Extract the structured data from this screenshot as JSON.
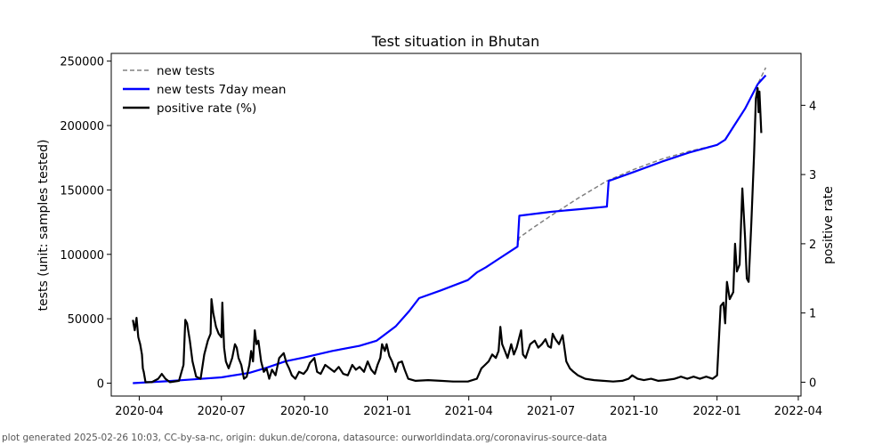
{
  "chart_data": {
    "type": "line",
    "title": "Test situation in Bhutan",
    "ylabel_left": "tests (unit: samples tested)",
    "ylabel_right": "positive rate",
    "ylim_left": [
      -10000,
      256000
    ],
    "ylim_right": [
      -0.2,
      4.75
    ],
    "xlim": [
      "2020-03-01",
      "2022-04-04"
    ],
    "y_ticks_left": [
      0,
      50000,
      100000,
      150000,
      200000,
      250000
    ],
    "y_ticks_right": [
      0,
      1,
      2,
      3,
      4
    ],
    "x_ticks": [
      "2020-04",
      "2020-07",
      "2020-10",
      "2021-01",
      "2021-04",
      "2021-07",
      "2021-10",
      "2022-01",
      "2022-04"
    ],
    "legend_placement": "top-left",
    "grid": false,
    "series": [
      {
        "name": "new tests",
        "axis": "left",
        "color": "#808080",
        "style": "dashed",
        "points": [
          [
            "2020-03-25",
            0
          ],
          [
            "2020-05-01",
            1500
          ],
          [
            "2020-06-01",
            3000
          ],
          [
            "2020-07-01",
            4500
          ],
          [
            "2020-08-01",
            8000
          ],
          [
            "2020-08-20",
            12000
          ],
          [
            "2020-09-10",
            17000
          ],
          [
            "2020-10-01",
            20000
          ],
          [
            "2020-11-01",
            25000
          ],
          [
            "2020-12-01",
            29000
          ],
          [
            "2020-12-20",
            33000
          ],
          [
            "2021-01-10",
            44000
          ],
          [
            "2021-01-25",
            56000
          ],
          [
            "2021-02-05",
            66000
          ],
          [
            "2021-03-01",
            72000
          ],
          [
            "2021-03-31",
            80000
          ],
          [
            "2021-04-10",
            86000
          ],
          [
            "2021-04-20",
            90000
          ],
          [
            "2021-05-01",
            95000
          ],
          [
            "2021-05-25",
            106000
          ],
          [
            "2021-05-27",
            113000
          ],
          [
            "2021-06-10",
            120000
          ],
          [
            "2021-07-01",
            130000
          ],
          [
            "2021-08-01",
            144000
          ],
          [
            "2021-09-01",
            157000
          ],
          [
            "2021-10-01",
            166000
          ],
          [
            "2021-11-01",
            174000
          ],
          [
            "2021-12-01",
            180000
          ],
          [
            "2022-01-01",
            185000
          ],
          [
            "2022-01-10",
            189000
          ],
          [
            "2022-01-20",
            200000
          ],
          [
            "2022-02-01",
            213000
          ],
          [
            "2022-02-15",
            232000
          ],
          [
            "2022-02-24",
            245000
          ]
        ]
      },
      {
        "name": "new tests 7day mean",
        "axis": "left",
        "color": "#0000ff",
        "style": "solid",
        "points": [
          [
            "2020-03-25",
            0
          ],
          [
            "2020-05-01",
            1500
          ],
          [
            "2020-06-01",
            3000
          ],
          [
            "2020-07-01",
            4500
          ],
          [
            "2020-08-01",
            8000
          ],
          [
            "2020-08-20",
            12000
          ],
          [
            "2020-09-10",
            17000
          ],
          [
            "2020-10-01",
            20000
          ],
          [
            "2020-11-01",
            25000
          ],
          [
            "2020-12-01",
            29000
          ],
          [
            "2020-12-20",
            33000
          ],
          [
            "2021-01-10",
            44000
          ],
          [
            "2021-01-25",
            56000
          ],
          [
            "2021-02-05",
            66000
          ],
          [
            "2021-03-01",
            72000
          ],
          [
            "2021-03-31",
            80000
          ],
          [
            "2021-04-10",
            86000
          ],
          [
            "2021-04-20",
            90000
          ],
          [
            "2021-05-01",
            95000
          ],
          [
            "2021-05-25",
            106000
          ],
          [
            "2021-05-27",
            130000
          ],
          [
            "2021-07-01",
            133000
          ],
          [
            "2021-08-01",
            135000
          ],
          [
            "2021-09-01",
            137000
          ],
          [
            "2021-09-03",
            157000
          ],
          [
            "2021-10-01",
            164000
          ],
          [
            "2021-11-01",
            172000
          ],
          [
            "2021-12-01",
            179000
          ],
          [
            "2022-01-01",
            185000
          ],
          [
            "2022-01-10",
            189000
          ],
          [
            "2022-01-20",
            200000
          ],
          [
            "2022-02-01",
            213000
          ],
          [
            "2022-02-15",
            232000
          ],
          [
            "2022-02-24",
            239000
          ]
        ]
      },
      {
        "name": "positive rate (%)",
        "axis": "right",
        "color": "#000000",
        "style": "solid",
        "points": [
          [
            "2020-03-25",
            0.9
          ],
          [
            "2020-03-27",
            0.75
          ],
          [
            "2020-03-29",
            0.93
          ],
          [
            "2020-03-31",
            0.65
          ],
          [
            "2020-04-02",
            0.55
          ],
          [
            "2020-04-04",
            0.4
          ],
          [
            "2020-04-05",
            0.2
          ],
          [
            "2020-04-06",
            0.15
          ],
          [
            "2020-04-08",
            0.0
          ],
          [
            "2020-04-15",
            0.0
          ],
          [
            "2020-04-22",
            0.05
          ],
          [
            "2020-04-26",
            0.12
          ],
          [
            "2020-04-30",
            0.05
          ],
          [
            "2020-05-05",
            0.0
          ],
          [
            "2020-05-15",
            0.02
          ],
          [
            "2020-05-20",
            0.25
          ],
          [
            "2020-05-22",
            0.9
          ],
          [
            "2020-05-24",
            0.85
          ],
          [
            "2020-05-27",
            0.6
          ],
          [
            "2020-05-30",
            0.3
          ],
          [
            "2020-06-03",
            0.08
          ],
          [
            "2020-06-08",
            0.05
          ],
          [
            "2020-06-12",
            0.4
          ],
          [
            "2020-06-16",
            0.6
          ],
          [
            "2020-06-19",
            0.7
          ],
          [
            "2020-06-20",
            1.2
          ],
          [
            "2020-06-22",
            1.0
          ],
          [
            "2020-06-25",
            0.8
          ],
          [
            "2020-06-28",
            0.7
          ],
          [
            "2020-07-01",
            0.65
          ],
          [
            "2020-07-02",
            1.15
          ],
          [
            "2020-07-04",
            0.5
          ],
          [
            "2020-07-06",
            0.3
          ],
          [
            "2020-07-09",
            0.2
          ],
          [
            "2020-07-13",
            0.35
          ],
          [
            "2020-07-16",
            0.55
          ],
          [
            "2020-07-18",
            0.5
          ],
          [
            "2020-07-20",
            0.35
          ],
          [
            "2020-07-23",
            0.25
          ],
          [
            "2020-07-26",
            0.05
          ],
          [
            "2020-07-29",
            0.08
          ],
          [
            "2020-08-01",
            0.25
          ],
          [
            "2020-08-03",
            0.45
          ],
          [
            "2020-08-05",
            0.3
          ],
          [
            "2020-08-07",
            0.75
          ],
          [
            "2020-08-09",
            0.55
          ],
          [
            "2020-08-11",
            0.6
          ],
          [
            "2020-08-14",
            0.3
          ],
          [
            "2020-08-17",
            0.15
          ],
          [
            "2020-08-20",
            0.2
          ],
          [
            "2020-08-23",
            0.05
          ],
          [
            "2020-08-26",
            0.18
          ],
          [
            "2020-08-30",
            0.1
          ],
          [
            "2020-09-03",
            0.35
          ],
          [
            "2020-09-08",
            0.42
          ],
          [
            "2020-09-11",
            0.28
          ],
          [
            "2020-09-14",
            0.2
          ],
          [
            "2020-09-17",
            0.1
          ],
          [
            "2020-09-21",
            0.05
          ],
          [
            "2020-09-25",
            0.15
          ],
          [
            "2020-09-30",
            0.12
          ],
          [
            "2020-10-04",
            0.18
          ],
          [
            "2020-10-07",
            0.28
          ],
          [
            "2020-10-12",
            0.35
          ],
          [
            "2020-10-15",
            0.15
          ],
          [
            "2020-10-19",
            0.12
          ],
          [
            "2020-10-24",
            0.25
          ],
          [
            "2020-10-29",
            0.2
          ],
          [
            "2020-11-03",
            0.15
          ],
          [
            "2020-11-08",
            0.22
          ],
          [
            "2020-11-13",
            0.12
          ],
          [
            "2020-11-18",
            0.1
          ],
          [
            "2020-11-23",
            0.25
          ],
          [
            "2020-11-27",
            0.18
          ],
          [
            "2020-12-01",
            0.22
          ],
          [
            "2020-12-06",
            0.15
          ],
          [
            "2020-12-10",
            0.3
          ],
          [
            "2020-12-14",
            0.18
          ],
          [
            "2020-12-18",
            0.12
          ],
          [
            "2020-12-21",
            0.25
          ],
          [
            "2020-12-24",
            0.35
          ],
          [
            "2020-12-26",
            0.55
          ],
          [
            "2020-12-29",
            0.45
          ],
          [
            "2020-12-31",
            0.55
          ],
          [
            "2021-01-03",
            0.38
          ],
          [
            "2021-01-06",
            0.3
          ],
          [
            "2021-01-10",
            0.15
          ],
          [
            "2021-01-13",
            0.28
          ],
          [
            "2021-01-17",
            0.3
          ],
          [
            "2021-01-20",
            0.18
          ],
          [
            "2021-01-24",
            0.05
          ],
          [
            "2021-02-01",
            0.02
          ],
          [
            "2021-02-15",
            0.03
          ],
          [
            "2021-03-01",
            0.02
          ],
          [
            "2021-03-15",
            0.01
          ],
          [
            "2021-03-31",
            0.01
          ],
          [
            "2021-04-10",
            0.05
          ],
          [
            "2021-04-15",
            0.2
          ],
          [
            "2021-04-19",
            0.25
          ],
          [
            "2021-04-23",
            0.3
          ],
          [
            "2021-04-27",
            0.4
          ],
          [
            "2021-05-01",
            0.35
          ],
          [
            "2021-05-04",
            0.45
          ],
          [
            "2021-05-06",
            0.8
          ],
          [
            "2021-05-08",
            0.55
          ],
          [
            "2021-05-11",
            0.45
          ],
          [
            "2021-05-14",
            0.35
          ],
          [
            "2021-05-18",
            0.55
          ],
          [
            "2021-05-21",
            0.4
          ],
          [
            "2021-05-24",
            0.5
          ],
          [
            "2021-05-27",
            0.65
          ],
          [
            "2021-05-29",
            0.75
          ],
          [
            "2021-05-31",
            0.4
          ],
          [
            "2021-06-03",
            0.35
          ],
          [
            "2021-06-08",
            0.55
          ],
          [
            "2021-06-13",
            0.6
          ],
          [
            "2021-06-17",
            0.5
          ],
          [
            "2021-06-21",
            0.55
          ],
          [
            "2021-06-25",
            0.62
          ],
          [
            "2021-06-28",
            0.52
          ],
          [
            "2021-07-01",
            0.5
          ],
          [
            "2021-07-03",
            0.7
          ],
          [
            "2021-07-06",
            0.62
          ],
          [
            "2021-07-10",
            0.55
          ],
          [
            "2021-07-14",
            0.68
          ],
          [
            "2021-07-18",
            0.3
          ],
          [
            "2021-07-22",
            0.2
          ],
          [
            "2021-07-26",
            0.15
          ],
          [
            "2021-07-31",
            0.1
          ],
          [
            "2021-08-08",
            0.05
          ],
          [
            "2021-08-18",
            0.03
          ],
          [
            "2021-08-28",
            0.02
          ],
          [
            "2021-09-08",
            0.01
          ],
          [
            "2021-09-18",
            0.02
          ],
          [
            "2021-09-25",
            0.05
          ],
          [
            "2021-09-29",
            0.1
          ],
          [
            "2021-10-05",
            0.05
          ],
          [
            "2021-10-12",
            0.03
          ],
          [
            "2021-10-20",
            0.05
          ],
          [
            "2021-10-28",
            0.02
          ],
          [
            "2021-11-05",
            0.03
          ],
          [
            "2021-11-15",
            0.05
          ],
          [
            "2021-11-22",
            0.08
          ],
          [
            "2021-11-29",
            0.05
          ],
          [
            "2021-12-06",
            0.08
          ],
          [
            "2021-12-13",
            0.05
          ],
          [
            "2021-12-20",
            0.08
          ],
          [
            "2021-12-27",
            0.05
          ],
          [
            "2022-01-01",
            0.1
          ],
          [
            "2022-01-05",
            1.1
          ],
          [
            "2022-01-08",
            1.15
          ],
          [
            "2022-01-10",
            0.85
          ],
          [
            "2022-01-12",
            1.45
          ],
          [
            "2022-01-15",
            1.2
          ],
          [
            "2022-01-19",
            1.3
          ],
          [
            "2022-01-21",
            2.0
          ],
          [
            "2022-01-23",
            1.6
          ],
          [
            "2022-01-26",
            1.7
          ],
          [
            "2022-01-29",
            2.8
          ],
          [
            "2022-02-01",
            2.1
          ],
          [
            "2022-02-03",
            1.5
          ],
          [
            "2022-02-05",
            1.45
          ],
          [
            "2022-02-08",
            2.3
          ],
          [
            "2022-02-11",
            3.3
          ],
          [
            "2022-02-13",
            4.1
          ],
          [
            "2022-02-15",
            4.25
          ],
          [
            "2022-02-16",
            3.9
          ],
          [
            "2022-02-17",
            4.2
          ],
          [
            "2022-02-19",
            3.6
          ]
        ]
      }
    ]
  },
  "footer": "plot generated 2025-02-26 10:03, CC-by-sa-nc, origin: dukun.de/corona, datasource: ourworldindata.org/coronavirus-source-data"
}
